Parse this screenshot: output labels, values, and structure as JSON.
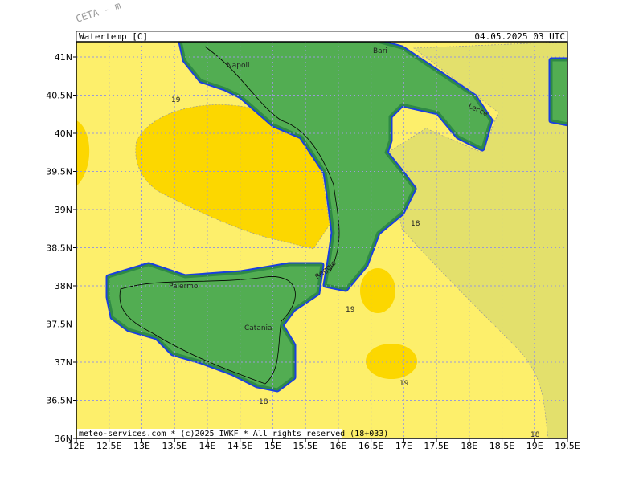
{
  "header": {
    "corner_text": "CETA - m",
    "title": "Watertemp [C]",
    "valid_time": "04.05.2025 03 UTC"
  },
  "axes": {
    "lon_labels": [
      "12E",
      "12.5E",
      "13E",
      "13.5E",
      "14E",
      "14.5E",
      "15E",
      "15.5E",
      "16E",
      "16.5E",
      "17E",
      "17.5E",
      "18E",
      "18.5E",
      "19E",
      "19.5E"
    ],
    "lat_labels": [
      "36N",
      "36.5N",
      "37N",
      "37.5N",
      "38N",
      "38.5N",
      "39N",
      "39.5N",
      "40N",
      "40.5N",
      "41N"
    ]
  },
  "places": [
    "Napoli",
    "Bari",
    "Lecce",
    "Reggio",
    "Palermo",
    "Catania"
  ],
  "contour_labels": [
    "19",
    "18",
    "19",
    "19",
    "18",
    "18"
  ],
  "footer": "meteo-services.com * (c)2025 IWKF * All rights reserved (18+033)"
}
